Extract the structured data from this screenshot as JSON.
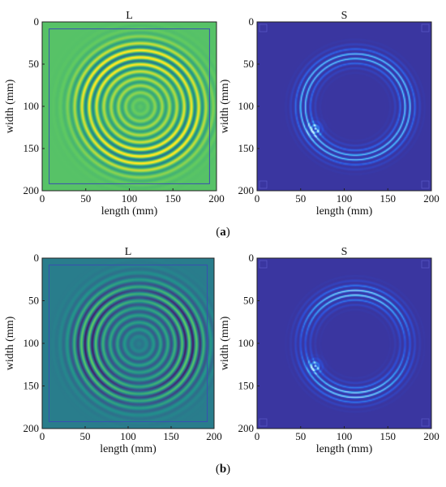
{
  "figure": {
    "panels": [
      {
        "caption_letter": "a",
        "plots": [
          {
            "title": "L",
            "colormap": "viridis",
            "background": "#7fc85a",
            "field": "L",
            "xlabel": "length (mm)",
            "ylabel": "width (mm)",
            "xticks": [
              "0",
              "50",
              "100",
              "150",
              "200"
            ],
            "yticks": [
              "0",
              "50",
              "100",
              "150",
              "200"
            ]
          },
          {
            "title": "S",
            "colormap": "blue",
            "background": "#3c39a6",
            "field": "S",
            "xlabel": "length (mm)",
            "ylabel": "width (mm)",
            "xticks": [
              "0",
              "50",
              "100",
              "150",
              "200"
            ],
            "yticks": [
              "0",
              "50",
              "100",
              "150",
              "200"
            ]
          }
        ]
      },
      {
        "caption_letter": "b",
        "plots": [
          {
            "title": "L",
            "colormap": "viridis",
            "background": "#28a8df",
            "field": "L",
            "xlabel": "length (mm)",
            "ylabel": "width (mm)",
            "xticks": [
              "0",
              "50",
              "100",
              "150",
              "200"
            ],
            "yticks": [
              "0",
              "50",
              "100",
              "150",
              "200"
            ]
          },
          {
            "title": "S",
            "colormap": "blue",
            "background": "#3b38a4",
            "field": "S",
            "xlabel": "length (mm)",
            "ylabel": "width (mm)",
            "xticks": [
              "0",
              "50",
              "100",
              "150",
              "200"
            ],
            "yticks": [
              "0",
              "50",
              "100",
              "150",
              "200"
            ]
          }
        ]
      }
    ],
    "caption_open": "(",
    "caption_close": ")"
  }
}
